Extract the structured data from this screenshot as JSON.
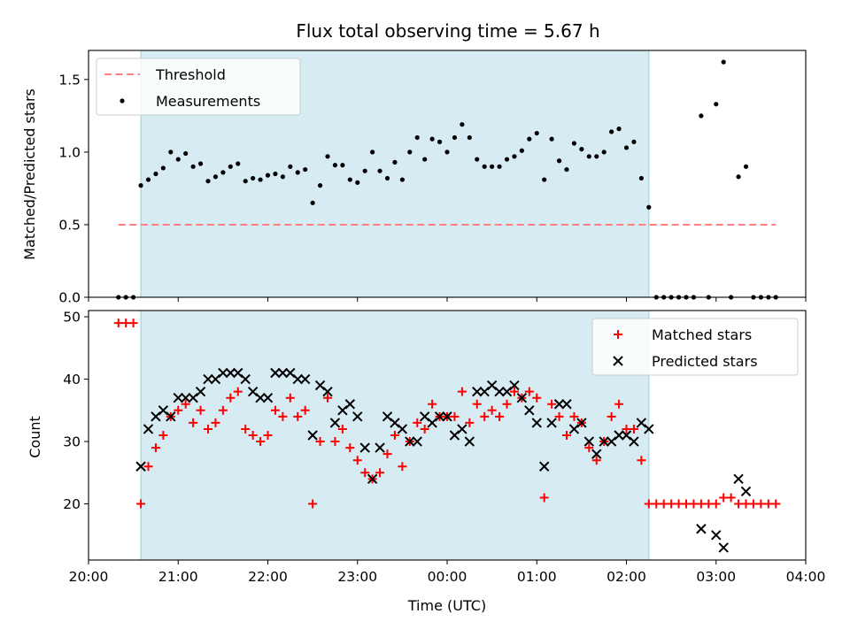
{
  "chart_data": [
    {
      "type": "scatter",
      "title": "Flux total observing time = 5.67 h",
      "xlabel": "",
      "ylabel": "Matched/Predicted stars",
      "xlim": [
        "20:00",
        "04:00"
      ],
      "ylim": [
        0,
        1.7
      ],
      "yticks": [
        "0.0",
        "0.5",
        "1.0",
        "1.5"
      ],
      "xticks": [
        "20:00",
        "21:00",
        "22:00",
        "23:00",
        "00:00",
        "01:00",
        "02:00",
        "03:00",
        "04:00"
      ],
      "show_xtick_labels": false,
      "grid": false,
      "shaded_span": [
        "20:35",
        "02:15"
      ],
      "legend": {
        "position": "upper-left",
        "entries": [
          "Threshold",
          "Measurements"
        ]
      },
      "threshold": {
        "name": "Threshold",
        "x": [
          "20:20",
          "03:40"
        ],
        "y": 0.5,
        "style": "dashed",
        "color": "#ff7f7f"
      },
      "series": [
        {
          "name": "Measurements",
          "marker": "dot",
          "color": "#000000",
          "points": [
            [
              "20:20",
              0.0
            ],
            [
              "20:25",
              0.0
            ],
            [
              "20:30",
              0.0
            ],
            [
              "20:35",
              0.77
            ],
            [
              "20:40",
              0.81
            ],
            [
              "20:45",
              0.85
            ],
            [
              "20:50",
              0.89
            ],
            [
              "20:55",
              1.0
            ],
            [
              "21:00",
              0.95
            ],
            [
              "21:05",
              0.99
            ],
            [
              "21:10",
              0.9
            ],
            [
              "21:15",
              0.92
            ],
            [
              "21:20",
              0.8
            ],
            [
              "21:25",
              0.83
            ],
            [
              "21:30",
              0.86
            ],
            [
              "21:35",
              0.9
            ],
            [
              "21:40",
              0.92
            ],
            [
              "21:45",
              0.8
            ],
            [
              "21:50",
              0.82
            ],
            [
              "21:55",
              0.81
            ],
            [
              "22:00",
              0.84
            ],
            [
              "22:05",
              0.85
            ],
            [
              "22:10",
              0.83
            ],
            [
              "22:15",
              0.9
            ],
            [
              "22:20",
              0.86
            ],
            [
              "22:25",
              0.88
            ],
            [
              "22:30",
              0.65
            ],
            [
              "22:35",
              0.77
            ],
            [
              "22:40",
              0.97
            ],
            [
              "22:45",
              0.91
            ],
            [
              "22:50",
              0.91
            ],
            [
              "22:55",
              0.81
            ],
            [
              "23:00",
              0.79
            ],
            [
              "23:05",
              0.87
            ],
            [
              "23:10",
              1.0
            ],
            [
              "23:15",
              0.87
            ],
            [
              "23:20",
              0.82
            ],
            [
              "23:25",
              0.93
            ],
            [
              "23:30",
              0.81
            ],
            [
              "23:35",
              1.0
            ],
            [
              "23:40",
              1.1
            ],
            [
              "23:45",
              0.95
            ],
            [
              "23:50",
              1.09
            ],
            [
              "23:55",
              1.07
            ],
            [
              "00:00",
              1.0
            ],
            [
              "00:05",
              1.1
            ],
            [
              "00:10",
              1.19
            ],
            [
              "00:15",
              1.1
            ],
            [
              "00:20",
              0.95
            ],
            [
              "00:25",
              0.9
            ],
            [
              "00:30",
              0.9
            ],
            [
              "00:35",
              0.9
            ],
            [
              "00:40",
              0.95
            ],
            [
              "00:45",
              0.97
            ],
            [
              "00:50",
              1.01
            ],
            [
              "00:55",
              1.09
            ],
            [
              "01:00",
              1.13
            ],
            [
              "01:05",
              0.81
            ],
            [
              "01:10",
              1.09
            ],
            [
              "01:15",
              0.94
            ],
            [
              "01:20",
              0.88
            ],
            [
              "01:25",
              1.06
            ],
            [
              "01:30",
              1.02
            ],
            [
              "01:35",
              0.97
            ],
            [
              "01:40",
              0.97
            ],
            [
              "01:45",
              1.0
            ],
            [
              "01:50",
              1.14
            ],
            [
              "01:55",
              1.16
            ],
            [
              "02:00",
              1.03
            ],
            [
              "02:05",
              1.07
            ],
            [
              "02:10",
              0.82
            ],
            [
              "02:15",
              0.62
            ],
            [
              "02:20",
              0.0
            ],
            [
              "02:25",
              0.0
            ],
            [
              "02:30",
              0.0
            ],
            [
              "02:35",
              0.0
            ],
            [
              "02:40",
              0.0
            ],
            [
              "02:45",
              0.0
            ],
            [
              "02:50",
              1.25
            ],
            [
              "02:55",
              0.0
            ],
            [
              "03:00",
              1.33
            ],
            [
              "03:05",
              1.62
            ],
            [
              "03:10",
              0.0
            ],
            [
              "03:15",
              0.83
            ],
            [
              "03:20",
              0.9
            ],
            [
              "03:25",
              0.0
            ],
            [
              "03:30",
              0.0
            ],
            [
              "03:35",
              0.0
            ],
            [
              "03:40",
              0.0
            ]
          ]
        }
      ]
    },
    {
      "type": "scatter",
      "title": "",
      "xlabel": "Time (UTC)",
      "ylabel": "Count",
      "xlim": [
        "20:00",
        "04:00"
      ],
      "ylim": [
        11,
        51
      ],
      "yticks": [
        "20",
        "30",
        "40",
        "50"
      ],
      "xticks": [
        "20:00",
        "21:00",
        "22:00",
        "23:00",
        "00:00",
        "01:00",
        "02:00",
        "03:00",
        "04:00"
      ],
      "show_xtick_labels": true,
      "grid": false,
      "shaded_span": [
        "20:35",
        "02:15"
      ],
      "legend": {
        "position": "upper-right",
        "entries": [
          "Matched stars",
          "Predicted stars"
        ]
      },
      "series": [
        {
          "name": "Matched stars",
          "marker": "plus",
          "color": "#ff0000",
          "points": [
            [
              "20:20",
              49
            ],
            [
              "20:25",
              49
            ],
            [
              "20:30",
              49
            ],
            [
              "20:35",
              20
            ],
            [
              "20:40",
              26
            ],
            [
              "20:45",
              29
            ],
            [
              "20:50",
              31
            ],
            [
              "20:55",
              34
            ],
            [
              "21:00",
              35
            ],
            [
              "21:05",
              36
            ],
            [
              "21:10",
              33
            ],
            [
              "21:15",
              35
            ],
            [
              "21:20",
              32
            ],
            [
              "21:25",
              33
            ],
            [
              "21:30",
              35
            ],
            [
              "21:35",
              37
            ],
            [
              "21:40",
              38
            ],
            [
              "21:45",
              32
            ],
            [
              "21:50",
              31
            ],
            [
              "21:55",
              30
            ],
            [
              "22:00",
              31
            ],
            [
              "22:05",
              35
            ],
            [
              "22:10",
              34
            ],
            [
              "22:15",
              37
            ],
            [
              "22:20",
              34
            ],
            [
              "22:25",
              35
            ],
            [
              "22:30",
              20
            ],
            [
              "22:35",
              30
            ],
            [
              "22:40",
              37
            ],
            [
              "22:45",
              30
            ],
            [
              "22:50",
              32
            ],
            [
              "22:55",
              29
            ],
            [
              "23:00",
              27
            ],
            [
              "23:05",
              25
            ],
            [
              "23:10",
              24
            ],
            [
              "23:15",
              25
            ],
            [
              "23:20",
              28
            ],
            [
              "23:25",
              31
            ],
            [
              "23:30",
              26
            ],
            [
              "23:35",
              30
            ],
            [
              "23:40",
              33
            ],
            [
              "23:45",
              32
            ],
            [
              "23:50",
              36
            ],
            [
              "23:55",
              34
            ],
            [
              "00:00",
              34
            ],
            [
              "00:05",
              34
            ],
            [
              "00:10",
              38
            ],
            [
              "00:15",
              33
            ],
            [
              "00:20",
              36
            ],
            [
              "00:25",
              34
            ],
            [
              "00:30",
              35
            ],
            [
              "00:35",
              34
            ],
            [
              "00:40",
              36
            ],
            [
              "00:45",
              38
            ],
            [
              "00:50",
              37
            ],
            [
              "00:55",
              38
            ],
            [
              "01:00",
              37
            ],
            [
              "01:05",
              21
            ],
            [
              "01:10",
              36
            ],
            [
              "01:15",
              34
            ],
            [
              "01:20",
              31
            ],
            [
              "01:25",
              34
            ],
            [
              "01:30",
              33
            ],
            [
              "01:35",
              29
            ],
            [
              "01:40",
              27
            ],
            [
              "01:45",
              30
            ],
            [
              "01:50",
              34
            ],
            [
              "01:55",
              36
            ],
            [
              "02:00",
              32
            ],
            [
              "02:05",
              32
            ],
            [
              "02:10",
              27
            ],
            [
              "02:15",
              20
            ],
            [
              "02:20",
              20
            ],
            [
              "02:25",
              20
            ],
            [
              "02:30",
              20
            ],
            [
              "02:35",
              20
            ],
            [
              "02:40",
              20
            ],
            [
              "02:45",
              20
            ],
            [
              "02:50",
              20
            ],
            [
              "02:55",
              20
            ],
            [
              "03:00",
              20
            ],
            [
              "03:05",
              21
            ],
            [
              "03:10",
              21
            ],
            [
              "03:15",
              20
            ],
            [
              "03:20",
              20
            ],
            [
              "03:25",
              20
            ],
            [
              "03:30",
              20
            ],
            [
              "03:35",
              20
            ],
            [
              "03:40",
              20
            ]
          ]
        },
        {
          "name": "Predicted stars",
          "marker": "x",
          "color": "#000000",
          "points": [
            [
              "20:35",
              26
            ],
            [
              "20:40",
              32
            ],
            [
              "20:45",
              34
            ],
            [
              "20:50",
              35
            ],
            [
              "20:55",
              34
            ],
            [
              "21:00",
              37
            ],
            [
              "21:05",
              37
            ],
            [
              "21:10",
              37
            ],
            [
              "21:15",
              38
            ],
            [
              "21:20",
              40
            ],
            [
              "21:25",
              40
            ],
            [
              "21:30",
              41
            ],
            [
              "21:35",
              41
            ],
            [
              "21:40",
              41
            ],
            [
              "21:45",
              40
            ],
            [
              "21:50",
              38
            ],
            [
              "21:55",
              37
            ],
            [
              "22:00",
              37
            ],
            [
              "22:05",
              41
            ],
            [
              "22:10",
              41
            ],
            [
              "22:15",
              41
            ],
            [
              "22:20",
              40
            ],
            [
              "22:25",
              40
            ],
            [
              "22:30",
              31
            ],
            [
              "22:35",
              39
            ],
            [
              "22:40",
              38
            ],
            [
              "22:45",
              33
            ],
            [
              "22:50",
              35
            ],
            [
              "22:55",
              36
            ],
            [
              "23:00",
              34
            ],
            [
              "23:05",
              29
            ],
            [
              "23:10",
              24
            ],
            [
              "23:15",
              29
            ],
            [
              "23:20",
              34
            ],
            [
              "23:25",
              33
            ],
            [
              "23:30",
              32
            ],
            [
              "23:35",
              30
            ],
            [
              "23:40",
              30
            ],
            [
              "23:45",
              34
            ],
            [
              "23:50",
              33
            ],
            [
              "23:55",
              34
            ],
            [
              "00:00",
              34
            ],
            [
              "00:05",
              31
            ],
            [
              "00:10",
              32
            ],
            [
              "00:15",
              30
            ],
            [
              "00:20",
              38
            ],
            [
              "00:25",
              38
            ],
            [
              "00:30",
              39
            ],
            [
              "00:35",
              38
            ],
            [
              "00:40",
              38
            ],
            [
              "00:45",
              39
            ],
            [
              "00:50",
              37
            ],
            [
              "00:55",
              35
            ],
            [
              "01:00",
              33
            ],
            [
              "01:05",
              26
            ],
            [
              "01:10",
              33
            ],
            [
              "01:15",
              36
            ],
            [
              "01:20",
              36
            ],
            [
              "01:25",
              32
            ],
            [
              "01:30",
              33
            ],
            [
              "01:35",
              30
            ],
            [
              "01:40",
              28
            ],
            [
              "01:45",
              30
            ],
            [
              "01:50",
              30
            ],
            [
              "01:55",
              31
            ],
            [
              "02:00",
              31
            ],
            [
              "02:05",
              30
            ],
            [
              "02:10",
              33
            ],
            [
              "02:15",
              32
            ],
            [
              "02:50",
              16
            ],
            [
              "03:00",
              15
            ],
            [
              "03:05",
              13
            ],
            [
              "03:15",
              24
            ],
            [
              "03:20",
              22
            ]
          ]
        }
      ]
    }
  ]
}
